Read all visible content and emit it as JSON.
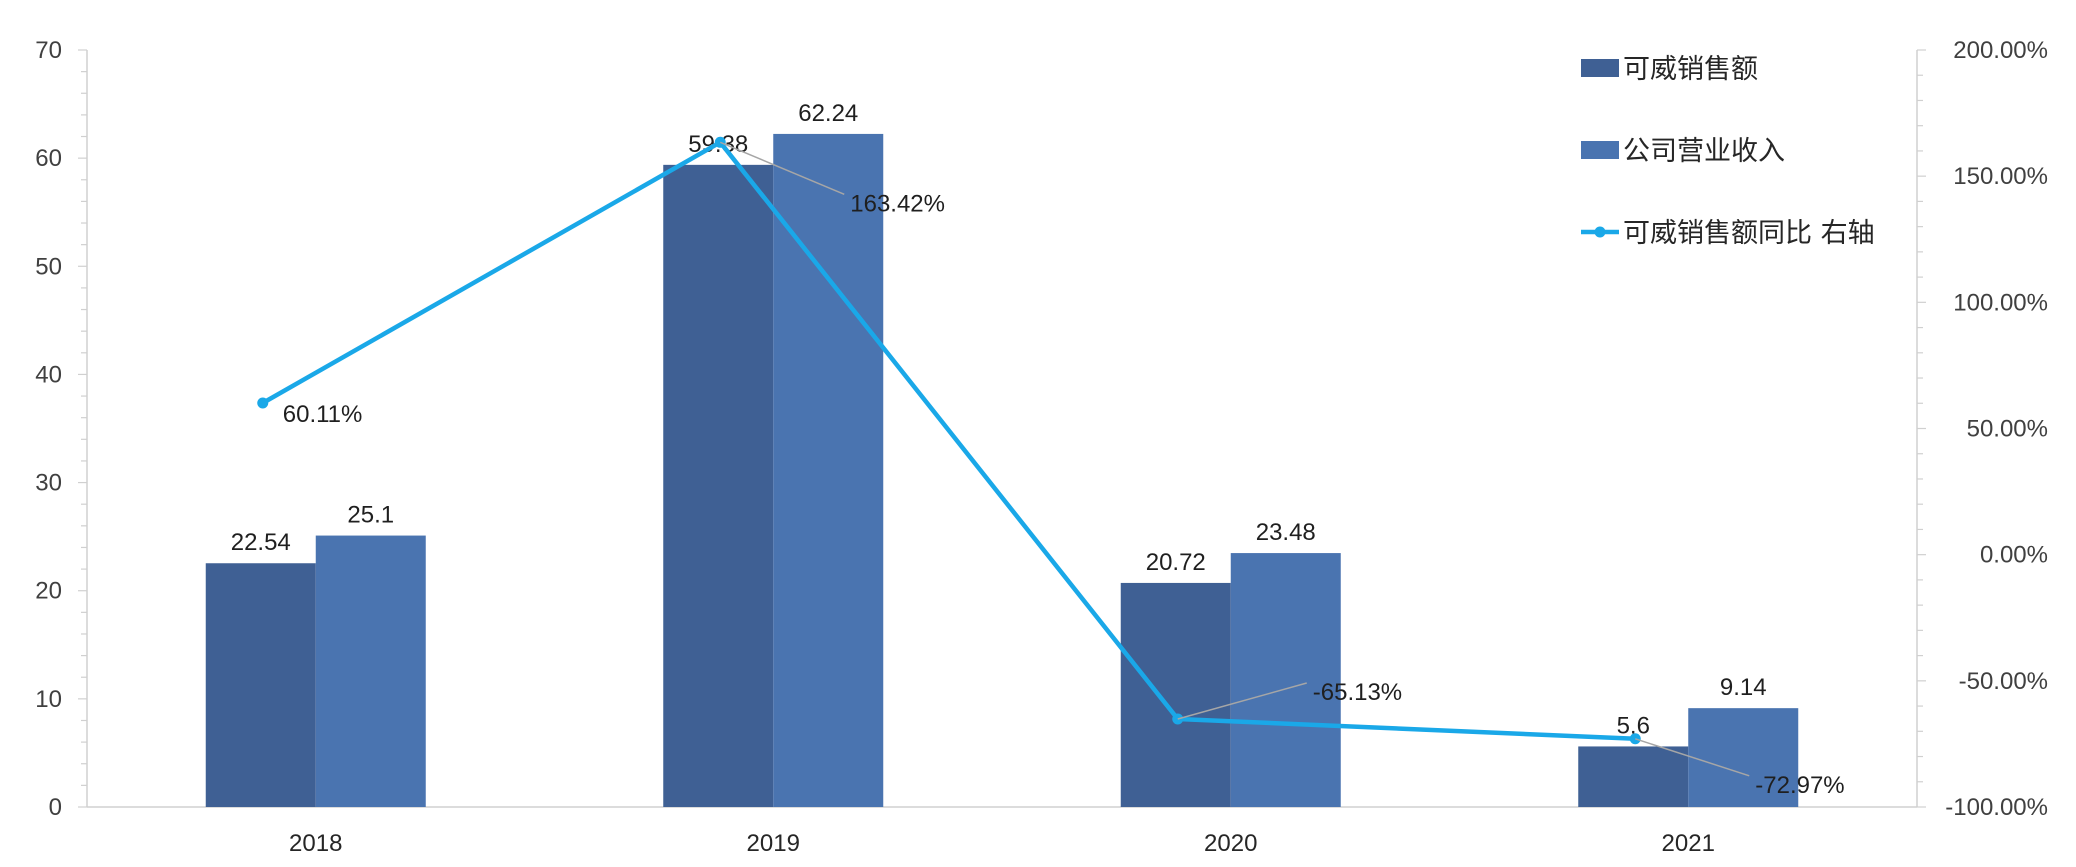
{
  "chart_data": {
    "type": "bar",
    "categories": [
      "2018",
      "2019",
      "2020",
      "2021"
    ],
    "series": [
      {
        "name": "可威销售额",
        "type": "bar",
        "axis": "left",
        "color": "#3f6094",
        "values": [
          22.54,
          59.38,
          20.72,
          5.6
        ]
      },
      {
        "name": "公司营业收入",
        "type": "bar",
        "axis": "left",
        "color": "#4a74b0",
        "values": [
          25.1,
          62.24,
          23.48,
          9.14
        ]
      },
      {
        "name": "可威销售额同比 右轴",
        "type": "line",
        "axis": "right",
        "color": "#1aa8e8",
        "values": [
          60.11,
          163.42,
          -65.13,
          -72.97
        ]
      }
    ],
    "data_labels": {
      "bars_a": [
        "22.54",
        "59.38",
        "20.72",
        "5.6"
      ],
      "bars_b": [
        "25.1",
        "62.24",
        "23.48",
        "9.14"
      ],
      "line": [
        "60.11%",
        "163.42%",
        "-65.13%",
        "-72.97%"
      ]
    },
    "y_left": {
      "ylim": [
        0,
        70
      ],
      "ticks": [
        "0",
        "10",
        "20",
        "30",
        "40",
        "50",
        "60",
        "70"
      ]
    },
    "y_right": {
      "ylim": [
        -100,
        200
      ],
      "ticks": [
        "-100.00%",
        "-50.00%",
        "0.00%",
        "50.00%",
        "100.00%",
        "150.00%",
        "200.00%"
      ]
    },
    "grid": false,
    "legend_position": "top-right",
    "title": "",
    "xlabel": "",
    "ylabel": ""
  }
}
